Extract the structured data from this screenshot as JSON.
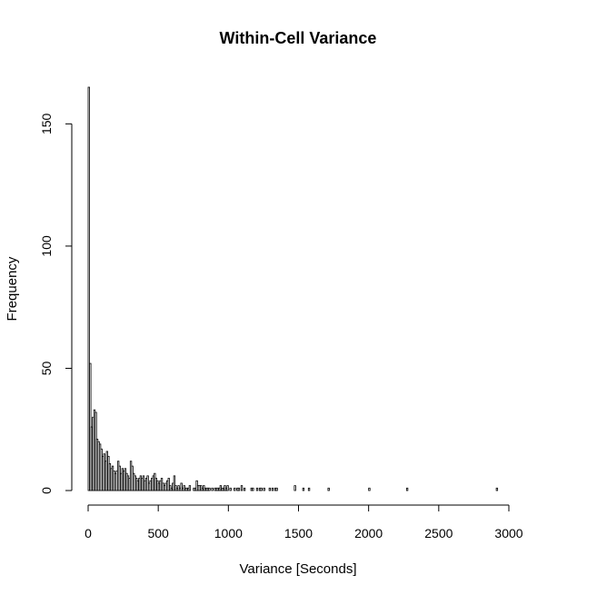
{
  "chart_data": {
    "type": "bar",
    "title": "Within-Cell Variance",
    "xlabel": "Variance [Seconds]",
    "ylabel": "Frequency",
    "xlim": [
      0,
      3000
    ],
    "ylim": [
      0,
      165
    ],
    "xticks": [
      0,
      500,
      1000,
      1500,
      2000,
      2500,
      3000
    ],
    "yticks": [
      0,
      50,
      100,
      150
    ],
    "bin_width": 10,
    "bin_start": 0,
    "values": [
      165,
      52,
      26,
      30,
      33,
      32,
      21,
      20,
      19,
      17,
      14,
      15,
      12,
      16,
      14,
      11,
      9,
      10,
      8,
      7,
      8,
      12,
      10,
      7,
      9,
      8,
      9,
      7,
      6,
      5,
      12,
      10,
      7,
      6,
      5,
      4,
      5,
      6,
      5,
      6,
      4,
      5,
      6,
      3,
      4,
      5,
      6,
      7,
      5,
      4,
      3,
      4,
      5,
      3,
      2,
      3,
      4,
      5,
      2,
      1,
      3,
      6,
      2,
      1,
      2,
      1,
      3,
      1,
      2,
      1,
      1,
      1,
      2,
      0,
      0,
      1,
      1,
      4,
      2,
      2,
      2,
      1,
      2,
      1,
      1,
      1,
      1,
      0,
      1,
      0,
      1,
      1,
      1,
      1,
      2,
      1,
      1,
      2,
      1,
      2,
      0,
      1,
      0,
      0,
      1,
      0,
      1,
      1,
      0,
      2,
      0,
      1,
      0,
      0,
      0,
      0,
      1,
      1,
      0,
      0,
      1,
      0,
      1,
      1,
      0,
      1,
      0,
      0,
      0,
      1,
      0,
      1,
      0,
      1,
      1,
      0,
      0,
      0,
      0,
      0,
      0,
      0,
      0,
      0,
      0,
      0,
      0,
      2,
      0,
      0,
      0,
      0,
      0,
      1,
      0,
      0,
      0,
      1,
      0,
      0,
      0,
      0,
      0,
      0,
      0,
      0,
      0,
      0,
      0,
      0,
      0,
      1,
      0,
      0,
      0,
      0,
      0,
      0,
      0,
      0,
      0,
      0,
      0,
      0,
      0,
      0,
      0,
      0,
      0,
      0,
      0,
      0,
      0,
      0,
      0,
      0,
      0,
      0,
      0,
      0,
      1,
      0,
      0,
      0,
      0,
      0,
      0,
      0,
      0,
      0,
      0,
      0,
      0,
      0,
      0,
      0,
      0,
      0,
      0,
      0,
      0,
      0,
      0,
      0,
      0,
      0,
      0,
      1,
      0,
      0,
      0,
      0,
      0,
      0,
      0,
      0,
      0,
      0,
      0,
      0,
      0,
      0,
      0,
      0,
      0,
      0,
      0,
      0,
      0,
      0,
      0,
      0,
      0,
      0,
      0,
      0,
      0,
      0,
      0,
      0,
      0,
      0,
      0,
      0,
      0,
      0,
      0,
      0,
      0,
      0,
      0,
      0,
      0,
      0,
      0,
      0,
      0,
      0,
      0,
      0,
      0,
      0,
      0,
      0,
      0,
      0,
      0,
      0,
      0,
      0,
      0,
      1
    ],
    "grid": false,
    "legend": "none"
  }
}
